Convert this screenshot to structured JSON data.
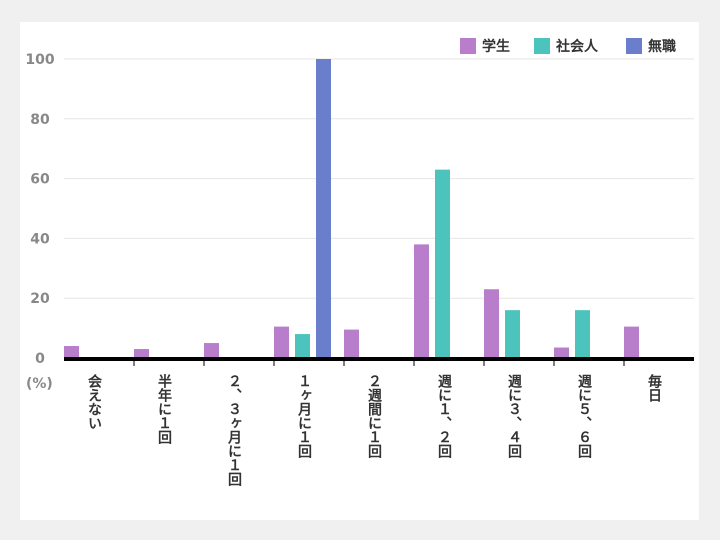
{
  "chart_data": {
    "type": "bar",
    "unit_label": "(%)",
    "categories": [
      "会えない",
      "半年に１回",
      "２、３ヶ月に１回",
      "１ヶ月に１回",
      "２週間に１回",
      "週に１、２回",
      "週に３、４回",
      "週に５、６回",
      "毎日"
    ],
    "series": [
      {
        "name": "学生",
        "color": "#b87ecb",
        "values": [
          4,
          3,
          5,
          10.5,
          9.5,
          38,
          23,
          3.5,
          10.5
        ]
      },
      {
        "name": "社会人",
        "color": "#4dc3bd",
        "values": [
          0,
          0,
          0,
          8,
          0,
          63,
          16,
          16,
          0
        ]
      },
      {
        "name": "無職",
        "color": "#6a7fcc",
        "values": [
          0,
          0,
          0,
          100,
          0,
          0,
          0,
          0,
          0
        ]
      }
    ],
    "yticks": [
      0,
      20,
      40,
      60,
      80,
      100
    ],
    "ylim": [
      0,
      100
    ],
    "grid": true,
    "legend": "top-right"
  }
}
